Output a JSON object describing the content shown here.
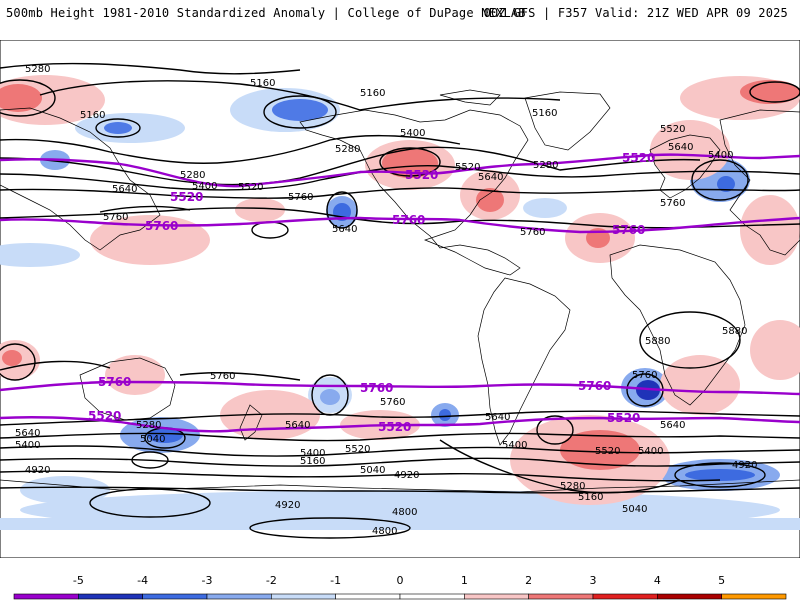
{
  "header": {
    "left": "500mb Height 1981-2010 Standardized Anomaly | College of DuPage NEXLAB",
    "right": "00Z GFS | F357 Valid: 21Z WED APR 09 2025"
  },
  "contour_labels": {
    "c5280a": "5280",
    "c5160a": "5160",
    "c5160b": "5160",
    "c5160c": "5160",
    "c5160d": "5160",
    "c5400a": "5400",
    "c5280b": "5280",
    "c5520a": "5520",
    "c5640a": "5640",
    "c5280c": "5280",
    "c5640b": "5640",
    "c5400b": "5400",
    "c5520b": "5520",
    "c5760a": "5760",
    "c5640c": "5640",
    "c5760b": "5760",
    "c5760c": "5760",
    "c5520c": "5520",
    "c5640d": "5640",
    "c5400c": "5400",
    "c5280d": "5280",
    "c5760d": "5760",
    "c5880a": "5880",
    "c5880b": "5880",
    "c5760e": "5760",
    "c5760f": "5760",
    "c5640e": "5640",
    "c5400d": "5400",
    "c5280e": "5280",
    "c5040a": "5040",
    "c5640f": "5640",
    "c5400e": "5400",
    "c5520d": "5520",
    "c5400f": "5400",
    "c5160e": "5160",
    "c5040b": "5040",
    "c4920a": "4920",
    "c4920b": "4920",
    "c4920c": "4920",
    "c4800a": "4800",
    "c4800b": "4800",
    "c5640g": "5640",
    "c5400g": "5400",
    "c5520e": "5520",
    "c5400h": "5400",
    "c5280f": "5280",
    "c5160f": "5160",
    "c5040c": "5040",
    "c4920d": "4920",
    "c5760g": "5760",
    "c5640h": "5640"
  },
  "purple_labels": {
    "p1": "5520",
    "p2": "5760",
    "p3": "5520",
    "p4": "5760",
    "p5": "5520",
    "p6": "5760",
    "p7": "5760",
    "p8": "5760",
    "p9": "5760",
    "p10": "5520",
    "p11": "5520",
    "p12": "5520"
  },
  "colorbar": {
    "ticks": [
      "-5",
      "-4",
      "-3",
      "-2",
      "-1",
      "0",
      "1",
      "2",
      "3",
      "4",
      "5"
    ],
    "colors": [
      "#9900cc",
      "#1f33b8",
      "#3d6be0",
      "#88aaee",
      "#c8dcf8",
      "#ffffff",
      "#ffffff",
      "#f8c6c6",
      "#ee7777",
      "#e02020",
      "#aa0000",
      "#ff9900"
    ]
  }
}
